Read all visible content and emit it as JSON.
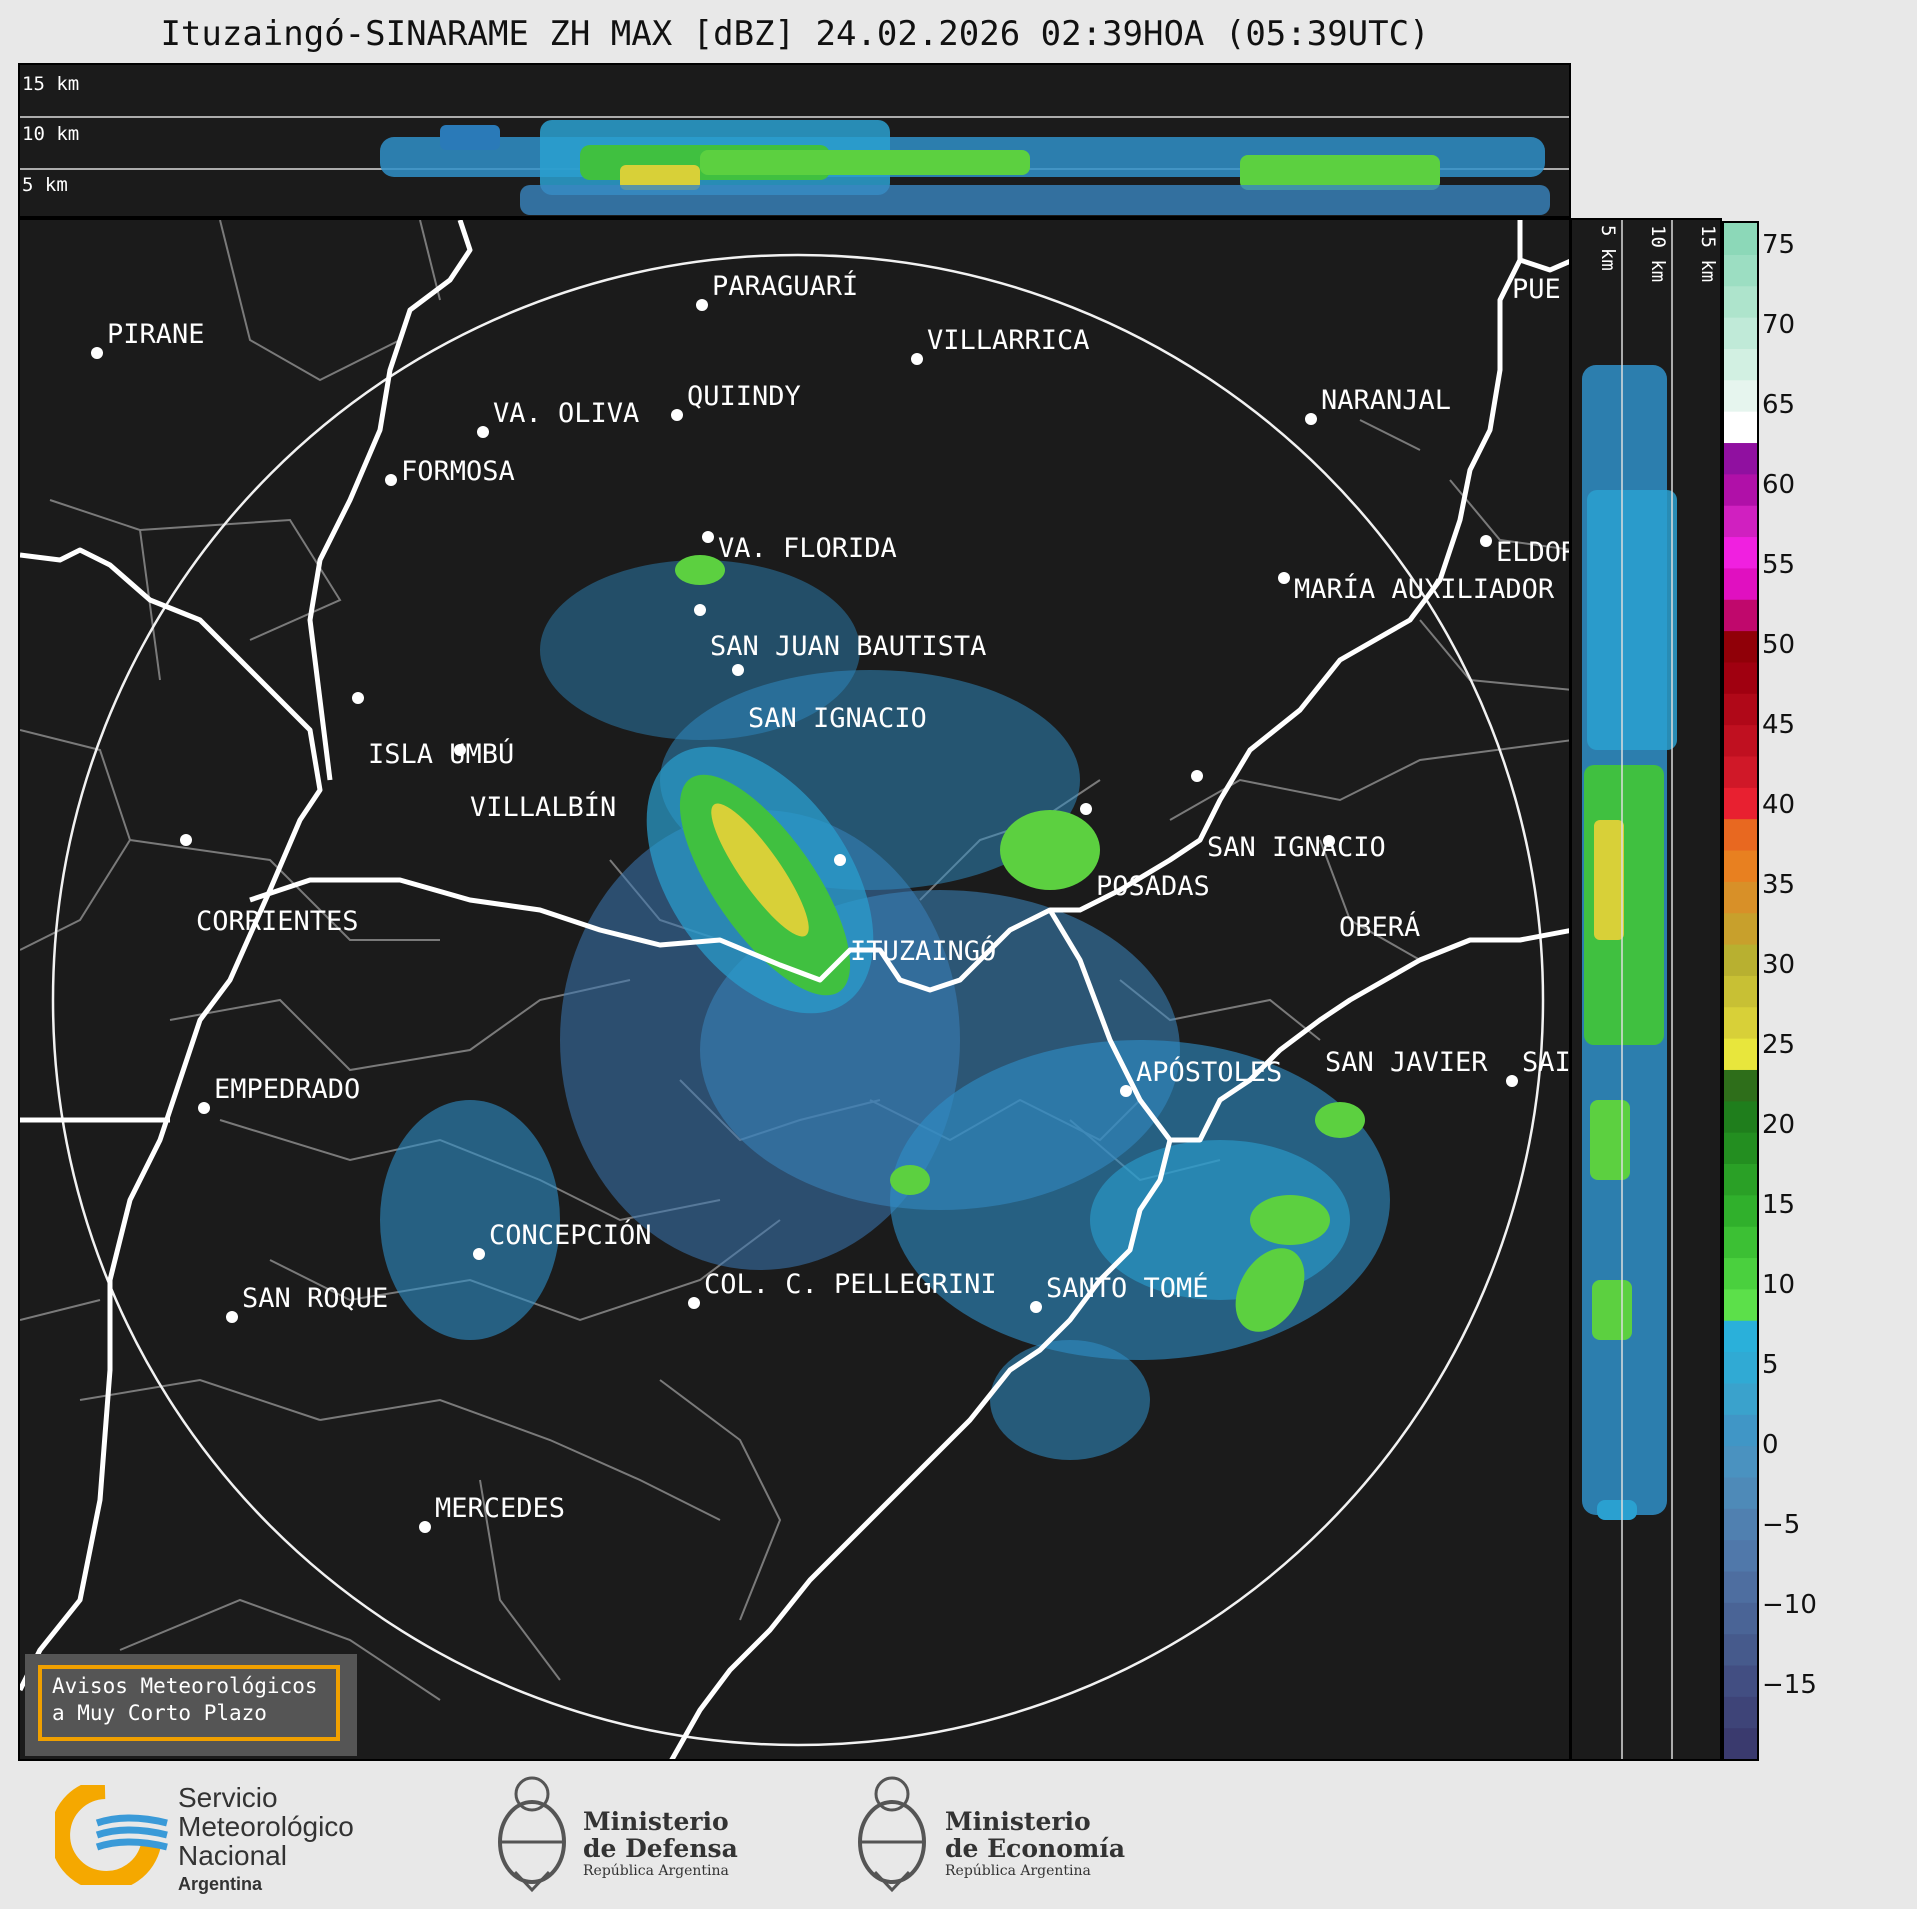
{
  "title": "Ituzaingó-SINARAME ZH MAX [dBZ] 24.02.2026 02:39HOA (05:39UTC)",
  "top_panel": {
    "height_labels": [
      "15 km",
      "10 km",
      "5 km"
    ]
  },
  "side_panel": {
    "height_labels": [
      "5 km",
      "10 km",
      "15 km"
    ]
  },
  "colorbar": {
    "ticks": [
      "75",
      "70",
      "65",
      "60",
      "55",
      "50",
      "45",
      "40",
      "35",
      "30",
      "25",
      "20",
      "15",
      "10",
      "5",
      "0",
      "−5",
      "−10",
      "−15"
    ],
    "colors": [
      "#3a3a6e",
      "#3e4478",
      "#424e82",
      "#465a8c",
      "#4a6496",
      "#4e6ea0",
      "#5078aa",
      "#5080b0",
      "#4e8ab8",
      "#4a92c0",
      "#4096c6",
      "#3aa2cc",
      "#30aad4",
      "#2ab0da",
      "#5ce04a",
      "#4ad03e",
      "#3cc034",
      "#30b02c",
      "#2aa026",
      "#238e20",
      "#1f7e1c",
      "#2e6e1a",
      "#e8e63c",
      "#d8d038",
      "#c8c034",
      "#b8b030",
      "#c8a02c",
      "#d89028",
      "#e88020",
      "#e86820",
      "#e82030",
      "#d01828",
      "#c01020",
      "#b00818",
      "#a00010",
      "#900008",
      "#c0086c",
      "#e010c0",
      "#f020e0",
      "#d020c0",
      "#b010a8",
      "#9010a0",
      "#ffffff",
      "#e6f5ee",
      "#d2f0e2",
      "#c0ead8",
      "#aee4cc",
      "#9cdec2",
      "#8cd8b8"
    ]
  },
  "cities": [
    {
      "name": "PARAGUARÍ"
    },
    {
      "name": "VILLARRICA"
    },
    {
      "name": "PIRANE"
    },
    {
      "name": "QUIINDY"
    },
    {
      "name": "VA. OLIVA"
    },
    {
      "name": "NARANJAL"
    },
    {
      "name": "FORMOSA"
    },
    {
      "name": "VA. FLORIDA"
    },
    {
      "name": "ELDOR"
    },
    {
      "name": "MARÍA AUXILIADOR"
    },
    {
      "name": "SAN JUAN BAUTISTA"
    },
    {
      "name": "SAN IGNACIO"
    },
    {
      "name": "ISLA UMBÚ"
    },
    {
      "name": "VILLALBÍN"
    },
    {
      "name": "SAN IGNACIO"
    },
    {
      "name": "POSADAS"
    },
    {
      "name": "CORRIENTES"
    },
    {
      "name": "ITUZAINGÓ"
    },
    {
      "name": "OBERÁ"
    },
    {
      "name": "APÓSTOLES"
    },
    {
      "name": "SAN JAVIER"
    },
    {
      "name": "SAI"
    },
    {
      "name": "EMPEDRADO"
    },
    {
      "name": "CONCEPCIÓN"
    },
    {
      "name": "COL. C. PELLEGRINI"
    },
    {
      "name": "SANTO TOMÉ"
    },
    {
      "name": "SAN ROQUE"
    },
    {
      "name": "MERCEDES"
    },
    {
      "name": "PUE"
    }
  ],
  "alert": {
    "line1": "Avisos Meteorológicos",
    "line2": "a Muy Corto Plazo"
  },
  "logos": {
    "smn": {
      "line1": "Servicio",
      "line2": "Meteorológico",
      "line3": "Nacional",
      "line4": "Argentina"
    },
    "defensa": {
      "line1": "Ministerio",
      "line2": "de Defensa",
      "line3": "República Argentina"
    },
    "economia": {
      "line1": "Ministerio",
      "line2": "de Economía",
      "line3": "República Argentina"
    }
  }
}
